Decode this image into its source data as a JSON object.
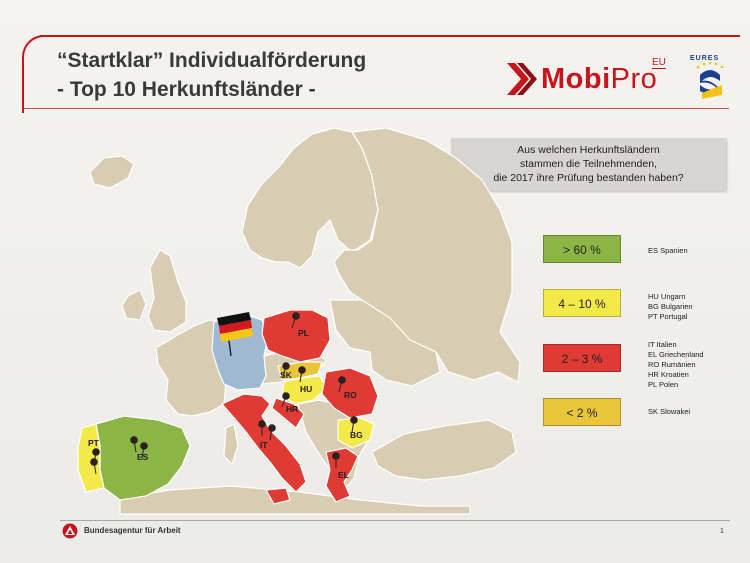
{
  "title": {
    "line1": "“Startklar” Individualförderung",
    "line2": "- Top 10 Herkunftsländer -"
  },
  "logos": {
    "mobipro_a": "Mobi",
    "mobipro_b": "Pro",
    "mobipro_eu": "EU",
    "eures": "EURES"
  },
  "question": {
    "line1": "Aus welchen Herkunftsländern",
    "line2": "stammen die Teilnehmenden,",
    "line3": "die 2017 ihre Prüfung bestanden haben?"
  },
  "legend": [
    {
      "range": "> 60 %",
      "color": "#8bb646",
      "countries": [
        "ES Spanien"
      ]
    },
    {
      "range": "4 – 10 %",
      "color": "#f3ea4a",
      "countries": [
        "HU Ungarn",
        "BG Bulgarien",
        "PT Portugal"
      ]
    },
    {
      "range": "2 – 3 %",
      "color": "#e03a34",
      "countries": [
        "IT Italien",
        "EL Griechenland",
        "RO Rumänien",
        "HR Kroatien",
        "PL Polen"
      ]
    },
    {
      "range": "< 2 %",
      "color": "#e9c53a",
      "countries": [
        "SK Slowakei"
      ]
    }
  ],
  "map_labels": {
    "pl": "PL",
    "sk": "SK",
    "hu": "HU",
    "ro": "RO",
    "hr": "HR",
    "bg": "BG",
    "it": "IT",
    "el": "EL",
    "es": "ES",
    "pt": "PT"
  },
  "map_colors": {
    "land": "#d8cdb2",
    "germany": "#9fb9d2",
    "green": "#8bb646",
    "yellow": "#f3ea4a",
    "red": "#e03a34",
    "sea": "#f1f0ec"
  },
  "footer": {
    "org": "Bundesagentur für Arbeit",
    "page": "1"
  }
}
